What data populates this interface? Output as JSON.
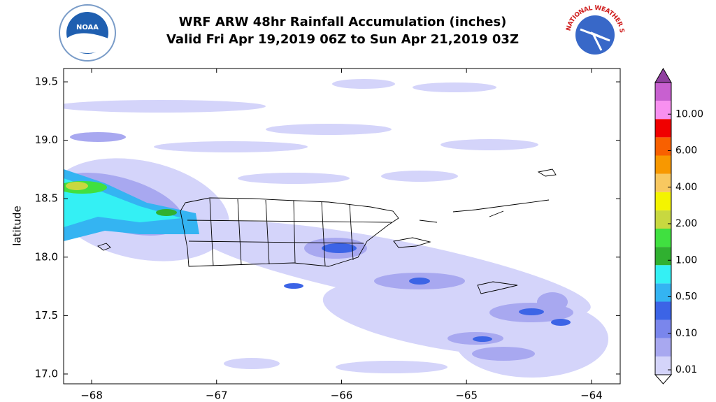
{
  "chart_data": {
    "type": "map",
    "title": "WRF ARW 48hr Rainfall Accumulation (inches)",
    "subtitle": "Valid Fri Apr 19,2019 06Z to Sun Apr 21,2019 03Z",
    "ylabel": "latitude",
    "logos": {
      "left": "NOAA",
      "right": "NATIONAL WEATHER SERVICE"
    },
    "xlim": [
      -68.224,
      -63.77
    ],
    "ylim": [
      16.916,
      19.614
    ],
    "xticks": [
      {
        "value": -68,
        "label": "−68"
      },
      {
        "value": -67,
        "label": "−67"
      },
      {
        "value": -66,
        "label": "−66"
      },
      {
        "value": -65,
        "label": "−65"
      },
      {
        "value": -64,
        "label": "−64"
      }
    ],
    "yticks": [
      {
        "value": 17,
        "label": "17.0"
      },
      17.5,
      {
        "value": 18,
        "label": "18.0"
      },
      18.5,
      {
        "value": 19,
        "label": "19.0"
      },
      19.5
    ],
    "colorbar": {
      "ticks": [
        {
          "value": 0.01,
          "label": "0.01"
        },
        {
          "value": 0.1,
          "label": "0.10"
        },
        {
          "value": 0.5,
          "label": "0.50"
        },
        {
          "value": 1,
          "label": "1.00"
        },
        {
          "value": 2,
          "label": "2.00"
        },
        {
          "value": 4,
          "label": "4.00"
        },
        {
          "value": 6,
          "label": "6.00"
        },
        {
          "value": 10,
          "label": "10.00"
        }
      ],
      "colors": [
        "#d4d4fa",
        "#a8a8f0",
        "#7a86ec",
        "#3c64e6",
        "#34b4f2",
        "#34f0f4",
        "#30b030",
        "#40e040",
        "#c8d840",
        "#f4f400",
        "#f8c860",
        "#f89800",
        "#f86000",
        "#f00000",
        "#f890f0",
        "#c860d0"
      ],
      "over_color": "#9040a0"
    }
  }
}
